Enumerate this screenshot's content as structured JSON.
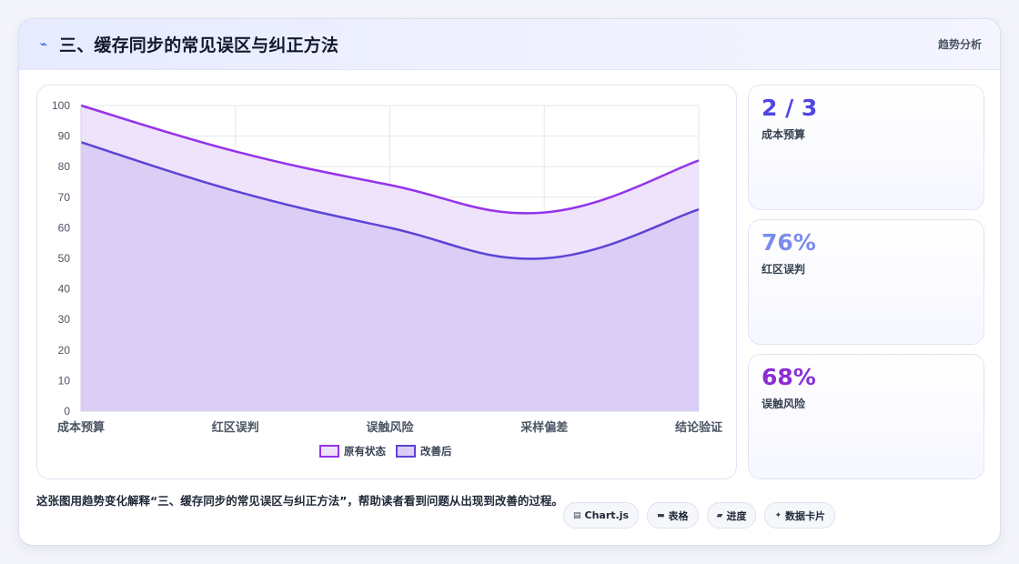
{
  "header": {
    "icon": "lightning-icon",
    "title": "三、缓存同步的常见误区与纠正方法",
    "tag": "趋势分析"
  },
  "chart_data": {
    "type": "area",
    "categories": [
      "成本预算",
      "红区误判",
      "误触风险",
      "采样偏差",
      "结论验证"
    ],
    "series": [
      {
        "name": "原有状态",
        "values": [
          100,
          85,
          74,
          65,
          82
        ],
        "color": "#9333ea",
        "fill": "#efe2fb"
      },
      {
        "name": "改善后",
        "values": [
          88,
          72,
          60,
          50,
          66
        ],
        "color": "#5b44d6",
        "fill": "#dccdf6"
      }
    ],
    "ylim": [
      0,
      100
    ],
    "yticks": [
      0,
      10,
      20,
      30,
      40,
      50,
      60,
      70,
      80,
      90,
      100
    ],
    "grid": true,
    "legend": "bottom-center",
    "curve": "smooth"
  },
  "stats": [
    {
      "value": "2 / 3",
      "label": "成本预算",
      "color": "#4f46e5"
    },
    {
      "value": "76%",
      "label": "红区误判",
      "color": "#7b8cea"
    },
    {
      "value": "68%",
      "label": "误触风险",
      "color": "#8b2fd4"
    }
  ],
  "footer": {
    "description": "这张图用趋势变化解释“三、缓存同步的常见误区与纠正方法”，帮助读者看到问题从出现到改善的过程。",
    "tags": [
      {
        "icon": "chart-icon",
        "glyph": "▤",
        "label": "Chart.js"
      },
      {
        "icon": "table-icon",
        "glyph": "▬",
        "label": "表格"
      },
      {
        "icon": "progress-icon",
        "glyph": "▰",
        "label": "进度"
      },
      {
        "icon": "sparkle-icon",
        "glyph": "✦",
        "label": "数据卡片"
      }
    ]
  }
}
